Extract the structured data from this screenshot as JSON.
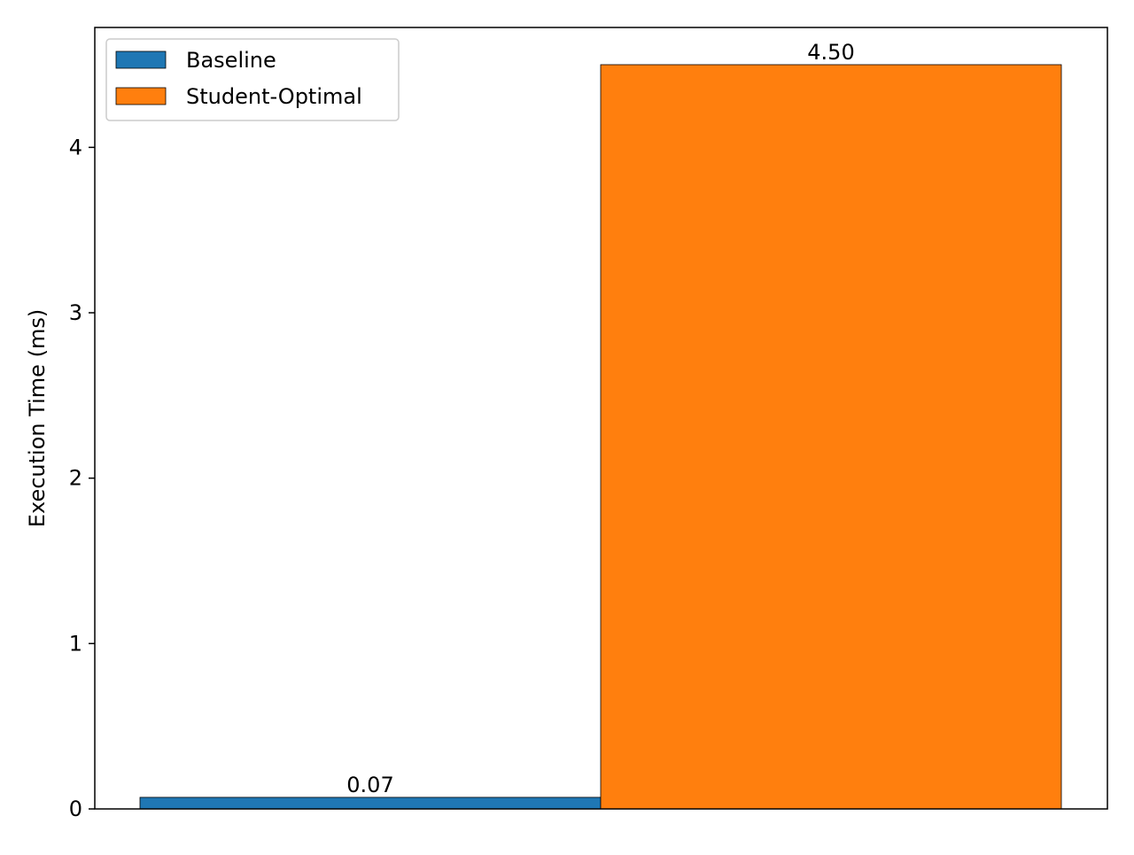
{
  "chart_data": {
    "type": "bar",
    "title": "",
    "xlabel": "",
    "ylabel": "Execution Time (ms)",
    "ylim": [
      0,
      4.725
    ],
    "yticks": [
      0,
      1,
      2,
      3,
      4
    ],
    "grid": false,
    "legend_position": "top-left",
    "series": [
      {
        "name": "Baseline",
        "value": 0.07,
        "label": "0.07",
        "color": "#1f77b4"
      },
      {
        "name": "Student-Optimal",
        "value": 4.5,
        "label": "4.50",
        "color": "#ff7f0e"
      }
    ]
  }
}
